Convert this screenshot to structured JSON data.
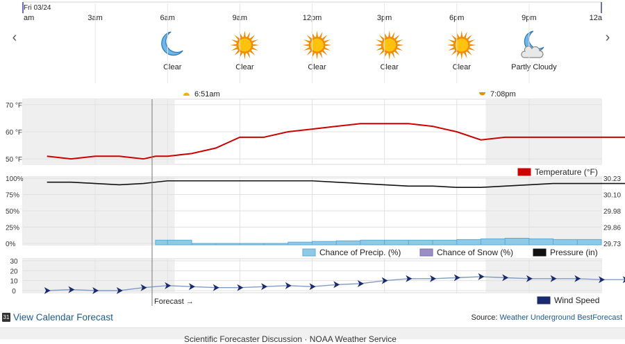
{
  "date_label": "Fri 03/24",
  "time_ticks": [
    "am",
    "3am",
    "6am",
    "9am",
    "12pm",
    "3pm",
    "6pm",
    "9pm",
    "12a"
  ],
  "conditions": [
    {
      "label": "Clear",
      "icon": "moon-icon"
    },
    {
      "label": "Clear",
      "icon": "sun-icon"
    },
    {
      "label": "Clear",
      "icon": "sun-icon"
    },
    {
      "label": "Clear",
      "icon": "sun-icon"
    },
    {
      "label": "Clear",
      "icon": "sun-icon"
    },
    {
      "label": "Partly Cloudy",
      "icon": "partly-cloudy-night-icon"
    }
  ],
  "sunrise": "6:51am",
  "sunset": "7:08pm",
  "forecast_label": "Forecast →",
  "colors": {
    "temperature": "#cc0000",
    "precip": "#8ecae6",
    "snow": "#9b8ec4",
    "pressure": "#111111",
    "wind": "#1a2a6c",
    "night": "#efefef"
  },
  "chart_data": [
    {
      "type": "line",
      "title": "",
      "yticks": [
        "70 °F",
        "60 °F",
        "50 °F"
      ],
      "ylim": [
        48,
        72
      ],
      "x_hours": [
        0,
        1,
        2,
        3,
        4,
        4.5,
        5,
        6,
        7,
        8,
        9,
        10,
        11,
        12,
        13,
        14,
        15,
        16,
        17,
        18,
        19,
        20,
        21,
        22,
        23,
        24
      ],
      "series": [
        {
          "name": "Temperature (°F)",
          "values": [
            51,
            50,
            51,
            51,
            50,
            51,
            51,
            52,
            54,
            58,
            58,
            60,
            61,
            62,
            63,
            63,
            63,
            62,
            60,
            57,
            58,
            58,
            58,
            58,
            58,
            58
          ]
        }
      ]
    },
    {
      "type": "area",
      "yticks_left": [
        "100%",
        "75%",
        "50%",
        "25%",
        "0%"
      ],
      "yticks_right": [
        "30.23",
        "30.10",
        "29.98",
        "29.86",
        "29.73"
      ],
      "ylim_left": [
        0,
        100
      ],
      "ylim_right": [
        29.73,
        30.23
      ],
      "x_hours": [
        0,
        1,
        2,
        3,
        4,
        4.5,
        5,
        6,
        7,
        8,
        9,
        10,
        11,
        12,
        13,
        14,
        15,
        16,
        17,
        18,
        19,
        20,
        21,
        22,
        23,
        24
      ],
      "series": [
        {
          "name": "Chance of Precip. (%)",
          "values": [
            null,
            null,
            null,
            null,
            null,
            5,
            5,
            0,
            0,
            0,
            0,
            2,
            3,
            4,
            5,
            5,
            5,
            5,
            6,
            7,
            8,
            7,
            6,
            6,
            7,
            7
          ]
        },
        {
          "name": "Chance of Snow (%)",
          "values": []
        },
        {
          "name": "Pressure (in)",
          "values": [
            30.2,
            30.2,
            30.19,
            30.18,
            30.19,
            30.2,
            30.21,
            30.21,
            30.21,
            30.21,
            30.21,
            30.21,
            30.21,
            30.2,
            30.19,
            30.18,
            30.17,
            30.17,
            30.16,
            30.16,
            30.17,
            30.18,
            30.19,
            30.19,
            30.19,
            30.19
          ]
        }
      ]
    },
    {
      "type": "line",
      "yticks": [
        "30",
        "20",
        "10",
        "0"
      ],
      "ylim": [
        0,
        30
      ],
      "x_hours": [
        0,
        1,
        2,
        3,
        4,
        5,
        6,
        7,
        8,
        9,
        10,
        11,
        12,
        13,
        14,
        15,
        16,
        17,
        18,
        19,
        20,
        21,
        22,
        23,
        24
      ],
      "series": [
        {
          "name": "Wind Speed",
          "values": [
            0,
            1,
            0,
            0,
            3,
            5,
            4,
            3,
            3,
            4,
            5,
            4,
            6,
            7,
            10,
            12,
            12,
            13,
            14,
            13,
            12,
            12,
            12,
            11,
            11
          ]
        }
      ]
    }
  ],
  "footer": {
    "calendar_link": "View Calendar Forecast",
    "source_label": "Source:",
    "source_link": "Weather Underground BestForecast"
  },
  "bottom_text": "Scientific Forecaster Discussion · NOAA Weather Service"
}
